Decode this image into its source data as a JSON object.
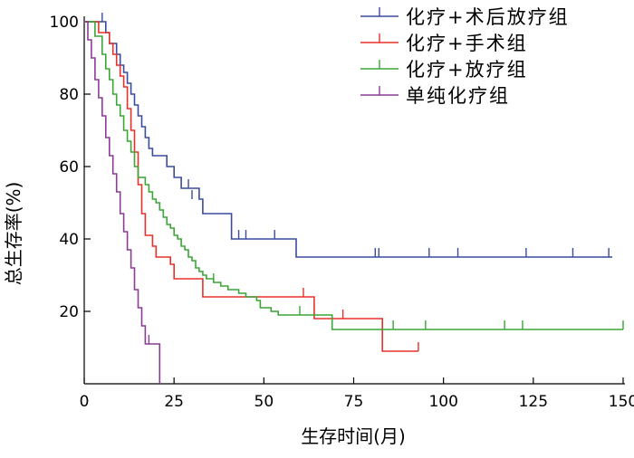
{
  "chart_data": {
    "type": "line",
    "step": true,
    "xlabel": "生存时间(月)",
    "ylabel": "总生存率(%)",
    "xlim": [
      0,
      150
    ],
    "ylim": [
      0,
      100
    ],
    "xticks": [
      0,
      25,
      50,
      75,
      100,
      125,
      150
    ],
    "yticks": [
      20,
      40,
      60,
      80,
      100
    ],
    "grid": false,
    "legend_position": "top-right",
    "series": [
      {
        "name": "化疗+术后放疗组",
        "color": "#3a4ba0",
        "points": [
          [
            0,
            100
          ],
          [
            5,
            100
          ],
          [
            6,
            97
          ],
          [
            7,
            94
          ],
          [
            8,
            94
          ],
          [
            9,
            91
          ],
          [
            10,
            88
          ],
          [
            11,
            86
          ],
          [
            12,
            83
          ],
          [
            13,
            80
          ],
          [
            14,
            77
          ],
          [
            15,
            74
          ],
          [
            16,
            71
          ],
          [
            17,
            68
          ],
          [
            18,
            65
          ],
          [
            19,
            63
          ],
          [
            20,
            63
          ],
          [
            23,
            60
          ],
          [
            25,
            57
          ],
          [
            27,
            54
          ],
          [
            32,
            51
          ],
          [
            33,
            47
          ],
          [
            41,
            44
          ],
          [
            41,
            40
          ],
          [
            58,
            40
          ],
          [
            59,
            35
          ],
          [
            147,
            35
          ]
        ],
        "censored": [
          [
            5,
            100
          ],
          [
            29,
            54
          ],
          [
            30,
            51
          ],
          [
            43,
            40
          ],
          [
            45,
            40
          ],
          [
            53,
            40
          ],
          [
            81,
            35
          ],
          [
            82,
            35
          ],
          [
            96,
            35
          ],
          [
            104,
            35
          ],
          [
            123,
            35
          ],
          [
            136,
            35
          ],
          [
            146,
            35
          ]
        ]
      },
      {
        "name": "化疗+手术组",
        "color": "#e8302a",
        "points": [
          [
            0,
            100
          ],
          [
            3,
            100
          ],
          [
            4,
            97
          ],
          [
            6,
            97
          ],
          [
            7,
            94
          ],
          [
            8,
            91
          ],
          [
            9,
            88
          ],
          [
            10,
            85
          ],
          [
            11,
            82
          ],
          [
            12,
            76
          ],
          [
            13,
            70
          ],
          [
            14,
            64
          ],
          [
            15,
            55
          ],
          [
            16,
            47
          ],
          [
            17,
            41
          ],
          [
            19,
            38
          ],
          [
            20,
            35
          ],
          [
            24,
            33
          ],
          [
            25,
            29
          ],
          [
            33,
            29
          ],
          [
            33,
            24
          ],
          [
            63,
            24
          ],
          [
            64,
            18
          ],
          [
            83,
            18
          ],
          [
            83,
            9
          ],
          [
            93,
            9
          ]
        ],
        "censored": [
          [
            20,
            35
          ],
          [
            61,
            24
          ],
          [
            72,
            18
          ],
          [
            93,
            9
          ]
        ]
      },
      {
        "name": "化疗+放疗组",
        "color": "#3aa636",
        "points": [
          [
            0,
            100
          ],
          [
            3,
            96
          ],
          [
            5,
            91
          ],
          [
            6,
            87
          ],
          [
            7,
            84
          ],
          [
            8,
            80
          ],
          [
            9,
            77
          ],
          [
            10,
            74
          ],
          [
            11,
            70
          ],
          [
            12,
            67
          ],
          [
            13,
            64
          ],
          [
            14,
            60
          ],
          [
            15,
            57
          ],
          [
            17,
            55
          ],
          [
            18,
            53
          ],
          [
            19,
            51
          ],
          [
            20,
            50
          ],
          [
            21,
            48
          ],
          [
            22,
            46
          ],
          [
            23,
            44
          ],
          [
            24,
            43
          ],
          [
            25,
            41
          ],
          [
            26,
            40
          ],
          [
            27,
            38
          ],
          [
            28,
            37
          ],
          [
            29,
            35
          ],
          [
            30,
            34
          ],
          [
            31,
            32
          ],
          [
            32,
            31
          ],
          [
            33,
            30
          ],
          [
            34,
            29
          ],
          [
            36,
            28
          ],
          [
            38,
            27
          ],
          [
            40,
            26
          ],
          [
            43,
            25
          ],
          [
            45,
            24
          ],
          [
            48,
            23
          ],
          [
            49,
            21
          ],
          [
            52,
            20
          ],
          [
            54,
            19
          ],
          [
            68,
            19
          ],
          [
            69,
            15
          ],
          [
            150,
            15
          ]
        ],
        "censored": [
          [
            36,
            28
          ],
          [
            60,
            19
          ],
          [
            86,
            15
          ],
          [
            95,
            15
          ],
          [
            117,
            15
          ],
          [
            122,
            15
          ],
          [
            150,
            15
          ]
        ]
      },
      {
        "name": "单纯化疗组",
        "color": "#8a3c94",
        "points": [
          [
            0,
            100
          ],
          [
            1,
            95
          ],
          [
            2,
            90
          ],
          [
            3,
            84
          ],
          [
            4,
            79
          ],
          [
            5,
            74
          ],
          [
            6,
            68
          ],
          [
            7,
            63
          ],
          [
            8,
            58
          ],
          [
            9,
            53
          ],
          [
            10,
            47
          ],
          [
            11,
            42
          ],
          [
            12,
            37
          ],
          [
            13,
            32
          ],
          [
            14,
            26
          ],
          [
            15,
            21
          ],
          [
            16,
            16
          ],
          [
            17,
            11
          ],
          [
            20,
            11
          ],
          [
            21,
            0
          ]
        ],
        "censored": [
          [
            18,
            11
          ]
        ]
      }
    ]
  }
}
